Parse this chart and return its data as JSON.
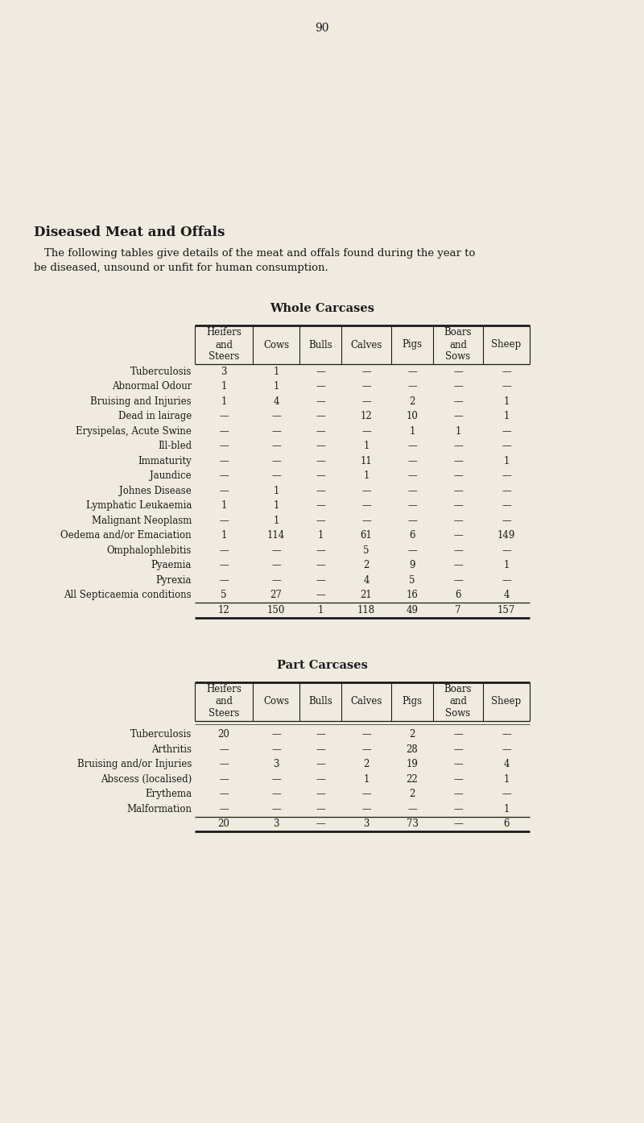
{
  "page_number": "90",
  "bg_color": "#f0ebe0",
  "title": "Diseased Meat and Offals",
  "intro_line1": "The following tables give details of the meat and offals found during the year to",
  "intro_line2": "be diseased, unsound or unfit for human consumption.",
  "whole_carcases_title": "Whole Carcases",
  "part_carcases_title": "Part Carcases",
  "col_headers": [
    "Heifers\nand\nSteers",
    "Cows",
    "Bulls",
    "Calves",
    "Pigs",
    "Boars\nand\nSows",
    "Sheep"
  ],
  "whole_rows": [
    [
      "Tuberculosis",
      "3",
      "1",
      "—",
      "—",
      "—",
      "—",
      "—"
    ],
    [
      "Abnormal Odour",
      "1",
      "1",
      "—",
      "—",
      "—",
      "—",
      "—"
    ],
    [
      "Bruising and Injuries",
      "1",
      "4",
      "—",
      "—",
      "2",
      "—",
      "1"
    ],
    [
      "Dead in lairage",
      "—",
      "—",
      "—",
      "12",
      "10",
      "—",
      "1"
    ],
    [
      "Erysipelas, Acute Swine",
      "—",
      "—",
      "—",
      "—",
      "1",
      "1",
      "—"
    ],
    [
      "Ill-bled",
      "—",
      "—",
      "—",
      "1",
      "—",
      "—",
      "—"
    ],
    [
      "Immaturity",
      "—",
      "—",
      "—",
      "11",
      "—",
      "—",
      "1"
    ],
    [
      "Jaundice",
      "—",
      "—",
      "—",
      "1",
      "—",
      "—",
      "—"
    ],
    [
      "Johnes Disease",
      "—",
      "1",
      "—",
      "—",
      "—",
      "—",
      "—"
    ],
    [
      "Lymphatic Leukaemia",
      "1",
      "1",
      "—",
      "—",
      "—",
      "—",
      "—"
    ],
    [
      "Malignant Neoplasm",
      "—",
      "1",
      "—",
      "—",
      "—",
      "—",
      "—"
    ],
    [
      "Oedema and/or Emaciation",
      "1",
      "114",
      "1",
      "61",
      "6",
      "—",
      "149"
    ],
    [
      "Omphalophlebitis",
      "—",
      "—",
      "—",
      "5",
      "—",
      "—",
      "—"
    ],
    [
      "Pyaemia",
      "—",
      "—",
      "—",
      "2",
      "9",
      "—",
      "1"
    ],
    [
      "Pyrexia",
      "—",
      "—",
      "—",
      "4",
      "5",
      "—",
      "—"
    ],
    [
      "All Septicaemia conditions",
      "5",
      "27",
      "—",
      "21",
      "16",
      "6",
      "4"
    ]
  ],
  "whole_totals": [
    "12",
    "150",
    "1",
    "118",
    "49",
    "7",
    "157"
  ],
  "part_rows": [
    [
      "Tuberculosis",
      "20",
      "—",
      "—",
      "—",
      "2",
      "—",
      "—"
    ],
    [
      "Arthritis",
      "—",
      "—",
      "—",
      "—",
      "28",
      "—",
      "—"
    ],
    [
      "Bruising and/or Injuries",
      "—",
      "3",
      "—",
      "2",
      "19",
      "—",
      "4"
    ],
    [
      "Abscess (localised)",
      "—",
      "—",
      "—",
      "1",
      "22",
      "—",
      "1"
    ],
    [
      "Erythema",
      "—",
      "—",
      "—",
      "—",
      "2",
      "—",
      "—"
    ],
    [
      "Malformation",
      "—",
      "—",
      "—",
      "—",
      "—",
      "—",
      "1"
    ]
  ],
  "part_totals": [
    "20",
    "3",
    "—",
    "3",
    "73",
    "—",
    "6"
  ]
}
